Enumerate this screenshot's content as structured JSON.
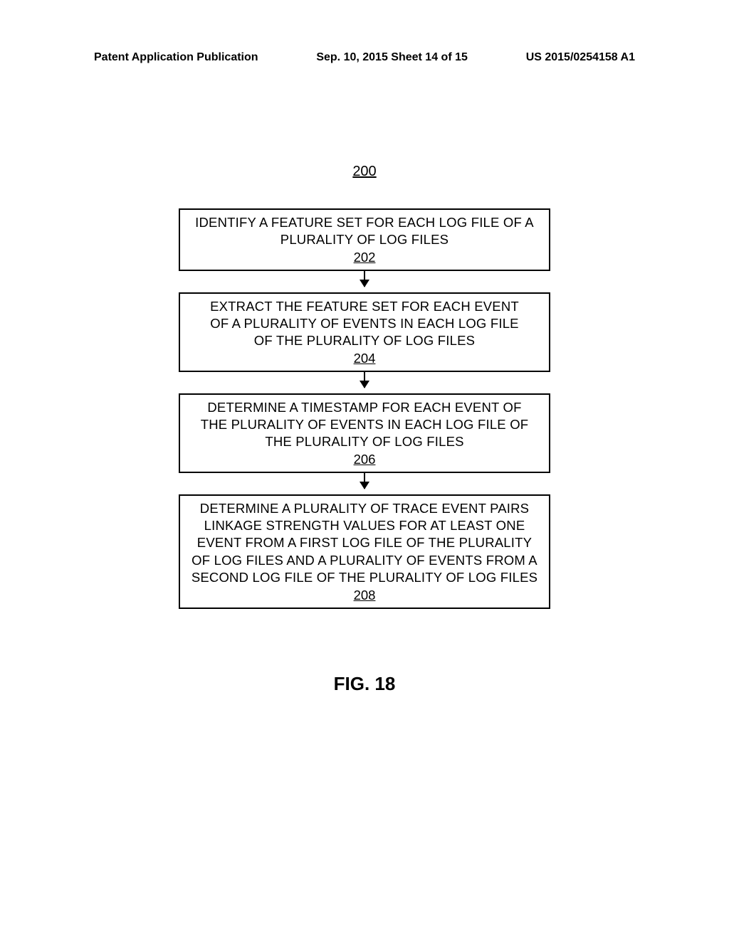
{
  "header": {
    "left": "Patent Application Publication",
    "center": "Sep. 10, 2015  Sheet 14 of 15",
    "right": "US 2015/0254158 A1"
  },
  "flowchart": {
    "refNumber": "200",
    "boxes": [
      {
        "text": "IDENTIFY A FEATURE SET FOR EACH LOG FILE OF A PLURALITY OF LOG FILES",
        "ref": "202",
        "padX": 20
      },
      {
        "text": "EXTRACT THE FEATURE SET FOR EACH EVENT OF A PLURALITY OF EVENTS IN EACH LOG FILE OF THE PLURALITY OF LOG FILES",
        "ref": "204",
        "padX": 28
      },
      {
        "text": "DETERMINE A TIMESTAMP FOR EACH EVENT OF THE PLURALITY OF EVENTS IN EACH LOG FILE OF THE PLURALITY OF LOG FILES",
        "ref": "206",
        "padX": 18
      },
      {
        "text": "DETERMINE A PLURALITY OF TRACE EVENT PAIRS LINKAGE STRENGTH VALUES FOR AT LEAST ONE EVENT FROM A FIRST LOG FILE OF THE PLURALITY OF LOG FILES AND A PLURALITY OF EVENTS FROM A SECOND LOG FILE OF THE PLURALITY OF LOG FILES",
        "ref": "208",
        "padX": 12
      }
    ],
    "figLabel": "FIG. 18",
    "styling": {
      "boxBorderColor": "#000000",
      "boxBorderWidth": 2,
      "arrowColor": "#000000",
      "fontFamily": "Arial",
      "bodyFontSize": 18.5,
      "refUnderline": true
    }
  }
}
